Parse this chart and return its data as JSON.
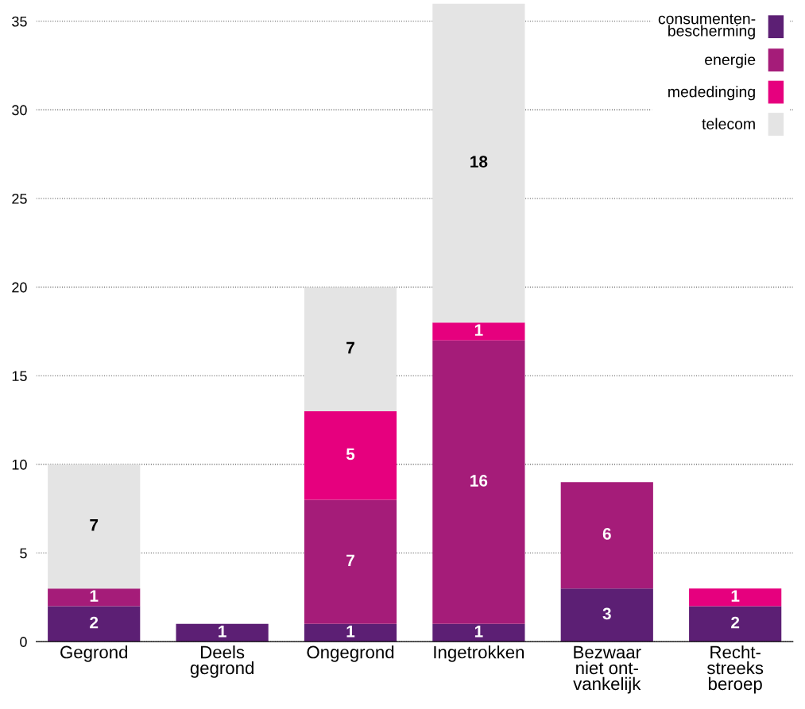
{
  "chart_data": {
    "type": "bar",
    "stacked": true,
    "categories": [
      "Gegrond",
      "Deels\ngegrond",
      "Ongegrond",
      "Ingetrokken",
      "Bezwaar\nniet ont-\nvankelijk",
      "Recht-\nstreeks\nberoep"
    ],
    "series": [
      {
        "name": "consumenten-\nbescherming",
        "color": "#5c1f74",
        "values": [
          2,
          1,
          1,
          1,
          3,
          2
        ]
      },
      {
        "name": "energie",
        "color": "#a51c79",
        "values": [
          1,
          null,
          7,
          16,
          6,
          null
        ]
      },
      {
        "name": "mededinging",
        "color": "#e6007e",
        "values": [
          null,
          null,
          5,
          1,
          null,
          1
        ]
      },
      {
        "name": "telecom",
        "color": "#e4e4e4",
        "values": [
          7,
          null,
          7,
          18,
          null,
          null
        ]
      }
    ],
    "ylim": [
      0,
      36
    ],
    "yticks": [
      0,
      5,
      10,
      15,
      20,
      25,
      30,
      35
    ],
    "grid": "y",
    "legend": "top right",
    "data_labels": true
  }
}
